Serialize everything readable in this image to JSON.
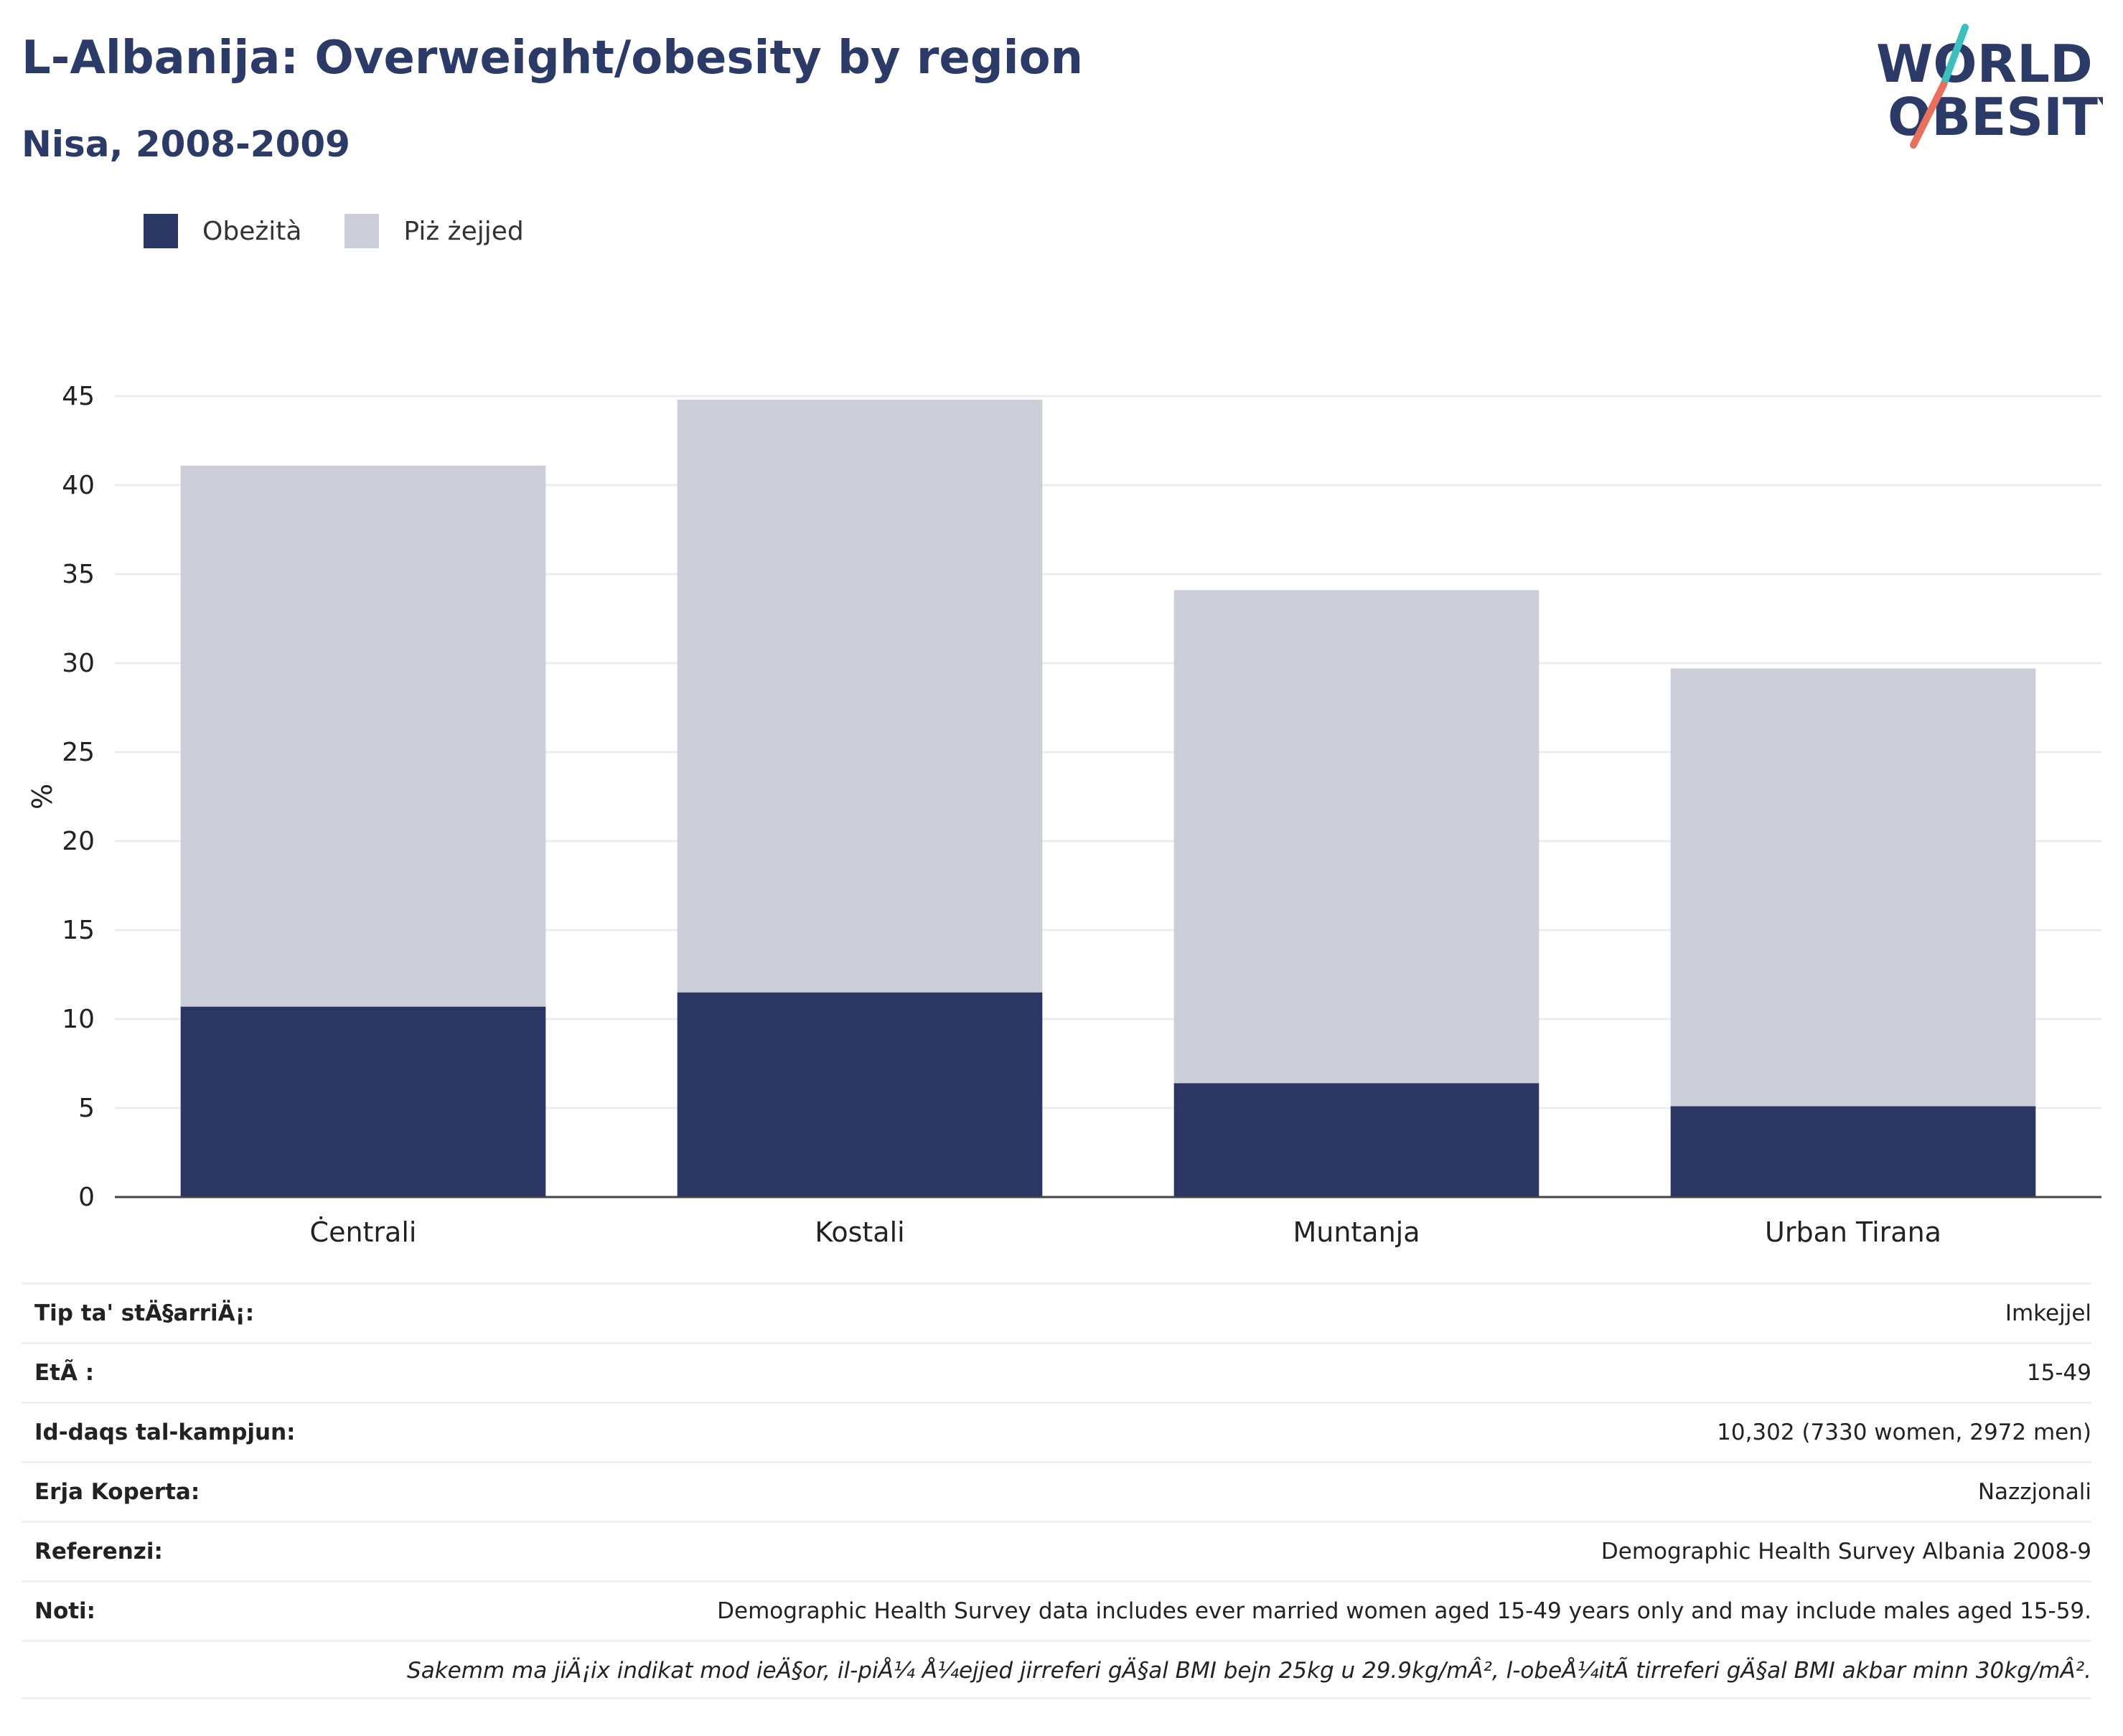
{
  "colors": {
    "obesity": "#2b3663",
    "overweight": "#cbcdd8",
    "title": "#2b3a67",
    "grid": "#ececf0",
    "axis": "#444444",
    "logo_teal": "#3cbfbf",
    "logo_red": "#e8705e"
  },
  "header": {
    "title": "L-Albanija: Overweight/obesity by region",
    "subtitle": "Nisa, 2008-2009"
  },
  "logo": {
    "line1": "WORLD",
    "line2": "OBESITY"
  },
  "legend": {
    "position": "top-left",
    "items": [
      {
        "label": "Obeżità",
        "color_key": "obesity"
      },
      {
        "label": "Piż żejjed",
        "color_key": "overweight"
      }
    ]
  },
  "chart_data": {
    "type": "bar",
    "stacked": true,
    "categories": [
      "Ċentrali",
      "Kostali",
      "Muntanja",
      "Urban Tirana"
    ],
    "series": [
      {
        "name": "Obeżità",
        "values": [
          10.7,
          11.5,
          6.4,
          5.1
        ]
      },
      {
        "name": "Piż żejjed",
        "values": [
          30.4,
          33.3,
          27.7,
          24.6
        ]
      }
    ],
    "ylabel": "%",
    "xlabel": "",
    "ylim": [
      0,
      45
    ],
    "yticks": [
      0,
      5,
      10,
      15,
      20,
      25,
      30,
      35,
      40,
      45
    ],
    "grid": true
  },
  "info": {
    "rows": [
      {
        "key": "Tip ta' stÄ§arriÄ¡:",
        "value": "Imkejjel"
      },
      {
        "key": "EtÃ :",
        "value": "15-49"
      },
      {
        "key": "Id-daqs tal-kampjun:",
        "value": "10,302 (7330 women, 2972 men)"
      },
      {
        "key": "Erja Koperta:",
        "value": "Nazzjonali"
      },
      {
        "key": "Referenzi:",
        "value": "Demographic Health Survey Albania 2008-9"
      },
      {
        "key": "Noti:",
        "value": "Demographic Health Survey data includes ever married women aged 15-49 years only and may include males aged 15-59."
      }
    ],
    "footnote": "Sakemm ma jiÄ¡ix indikat mod ieÄ§or, il-piÅ¼ Å¼ejjed jirreferi gÄ§al BMI bejn 25kg u 29.9kg/mÂ², l-obeÅ¼itÃ  tirreferi gÄ§al BMI akbar minn 30kg/mÂ²."
  }
}
